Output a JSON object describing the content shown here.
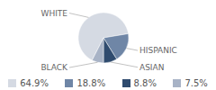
{
  "chart_data": {
    "type": "pie",
    "categories": [
      "WHITE",
      "HISPANIC",
      "ASIAN",
      "BLACK"
    ],
    "values": [
      64.9,
      18.8,
      8.8,
      7.5
    ],
    "value_labels": [
      "64.9%",
      "18.8%",
      "8.8%",
      "7.5%"
    ],
    "colors": [
      "#d5dae3",
      "#6f86a6",
      "#2f4b6e",
      "#a8b3c6"
    ],
    "legend": "bottom"
  }
}
